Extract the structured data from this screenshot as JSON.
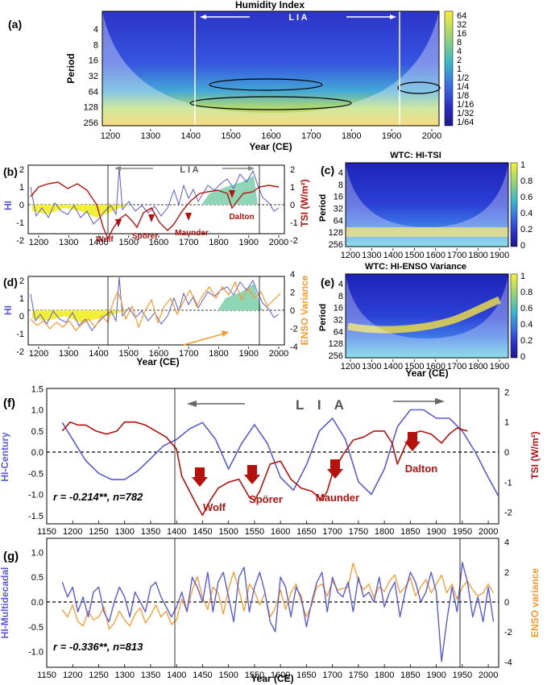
{
  "panel_a": {
    "tag": "(a)",
    "title": "Humidity Index",
    "ylabel": "Period",
    "xlabel": "Year (CE)",
    "lia_label": "L I A",
    "xticks": [
      "1200",
      "1300",
      "1400",
      "1500",
      "1600",
      "1700",
      "1800",
      "1900",
      "2000"
    ],
    "yticks": [
      "4",
      "8",
      "16",
      "32",
      "64",
      "128",
      "256"
    ],
    "colorbar": [
      "64",
      "32",
      "16",
      "8",
      "4",
      "2",
      "1",
      "1/2",
      "1/4",
      "1/8",
      "1/16",
      "1/32",
      "1/64"
    ]
  },
  "panel_b": {
    "tag": "(b)",
    "ylabel_left": "HI",
    "ylabel_right": "TSI (W/m²)",
    "lia_label": "L I A",
    "minima": [
      "Wolf",
      "Spörer",
      "Maunder",
      "Dalton"
    ],
    "xticks": [
      "1200",
      "1300",
      "1400",
      "1500",
      "1600",
      "1700",
      "1800",
      "1900",
      "2000"
    ],
    "yticks_left": [
      "2",
      "1",
      "0",
      "-1",
      "-2"
    ],
    "yticks_right": [
      "2",
      "1",
      "0",
      "-1",
      "-2"
    ]
  },
  "panel_c": {
    "tag": "(c)",
    "title": "WTC: HI-TSI",
    "ylabel": "Period",
    "yticks": [
      "4",
      "8",
      "16",
      "32",
      "64",
      "128",
      "256"
    ],
    "xticks": [
      "1200",
      "1300",
      "1400",
      "1500",
      "1600",
      "1700",
      "1800",
      "1900"
    ],
    "colorbar": [
      "1",
      "0.8",
      "0.6",
      "0.4",
      "0.2",
      "0"
    ]
  },
  "panel_d": {
    "tag": "(d)",
    "ylabel_left": "HI",
    "ylabel_right": "ENSO Variance",
    "xlabel": "Year (CE)",
    "xticks": [
      "1200",
      "1300",
      "1400",
      "1500",
      "1600",
      "1700",
      "1800",
      "1900",
      "2000"
    ],
    "yticks_left": [
      "2",
      "1",
      "0",
      "-1",
      "-2"
    ],
    "yticks_right": [
      "4",
      "2",
      "0",
      "-2",
      "-4"
    ]
  },
  "panel_e": {
    "tag": "(e)",
    "title": "WTC: HI-ENSO Variance",
    "ylabel": "Period",
    "xlabel": "Year (CE)",
    "yticks": [
      "4",
      "8",
      "16",
      "32",
      "64",
      "128",
      "256"
    ],
    "xticks": [
      "1200",
      "1300",
      "1400",
      "1500",
      "1600",
      "1700",
      "1800",
      "1900"
    ],
    "colorbar": [
      "1",
      "0.8",
      "0.6",
      "0.4",
      "0.2",
      "0"
    ]
  },
  "panel_f": {
    "tag": "(f)",
    "ylabel_left": "HI-Century",
    "ylabel_right": "TSI (W/m²)",
    "lia_label": "L I A",
    "minima": [
      "Wolf",
      "Spörer",
      "Maunder",
      "Dalton"
    ],
    "stat_r": "r = -0.214**, n=782",
    "xticks": [
      "1150",
      "1200",
      "1250",
      "1300",
      "1350",
      "1400",
      "1450",
      "1500",
      "1550",
      "1600",
      "1650",
      "1700",
      "1750",
      "1800",
      "1850",
      "1900",
      "1950",
      "2000"
    ],
    "yticks_left": [
      "1.5",
      "1.0",
      "0.5",
      "0.0",
      "-0.5",
      "-1.0",
      "-1.5"
    ],
    "yticks_right": [
      "2",
      "1",
      "0",
      "-1",
      "-2"
    ]
  },
  "panel_g": {
    "tag": "(g)",
    "ylabel_left": "HI-Multidecadal",
    "ylabel_right": "ENSO variance",
    "xlabel": "Year (CE)",
    "stat_r": "r = -0.336**, n=813",
    "xticks": [
      "1150",
      "1200",
      "1250",
      "1300",
      "1350",
      "1400",
      "1450",
      "1500",
      "1550",
      "1600",
      "1650",
      "1700",
      "1750",
      "1800",
      "1850",
      "1900",
      "1950",
      "2000"
    ],
    "yticks_left": [
      "1.0",
      "0.5",
      "0.0",
      "-0.5",
      "-1.0"
    ],
    "yticks_right": [
      "4",
      "2",
      "0",
      "-2",
      "-4"
    ]
  },
  "colors": {
    "hi": "#5b5bd6",
    "tsi": "#b5120e",
    "enso": "#f59a2e"
  },
  "chart_data": [
    {
      "type": "heatmap",
      "panel": "a",
      "title": "Humidity Index",
      "xlabel": "Year (CE)",
      "ylabel": "Period",
      "xlim": [
        1170,
        2020
      ],
      "y_scale": "log2",
      "ylim": [
        2,
        256
      ]
    },
    {
      "type": "line",
      "panel": "f",
      "xlim": [
        1150,
        2020
      ],
      "series": [
        {
          "name": "HI-Century",
          "axis": "left",
          "x": [
            1180,
            1200,
            1225,
            1250,
            1275,
            1300,
            1325,
            1350,
            1375,
            1400,
            1425,
            1450,
            1475,
            1500,
            1525,
            1550,
            1575,
            1600,
            1625,
            1650,
            1675,
            1700,
            1725,
            1750,
            1775,
            1800,
            1825,
            1850,
            1875,
            1900,
            1925,
            1950,
            1975,
            2000,
            2020
          ],
          "y": [
            0.7,
            0.3,
            -0.2,
            -0.5,
            -0.65,
            -0.65,
            -0.45,
            -0.15,
            0.15,
            0.3,
            0.55,
            0.7,
            0.3,
            -0.4,
            0.2,
            0.65,
            0.2,
            -0.6,
            -0.9,
            -0.3,
            0.5,
            0.8,
            0.3,
            -0.7,
            -1.0,
            -0.4,
            0.6,
            1.0,
            1.0,
            0.8,
            0.8,
            0.5,
            0.0,
            -0.6,
            -1.05
          ]
        },
        {
          "name": "TSI",
          "axis": "right",
          "x": [
            1180,
            1195,
            1210,
            1225,
            1245,
            1265,
            1285,
            1300,
            1320,
            1340,
            1360,
            1380,
            1400,
            1410,
            1425,
            1440,
            1450,
            1465,
            1480,
            1500,
            1520,
            1540,
            1550,
            1560,
            1580,
            1600,
            1620,
            1640,
            1660,
            1680,
            1690,
            1700,
            1720,
            1740,
            1760,
            1780,
            1800,
            1815,
            1825,
            1835,
            1850,
            1870,
            1890,
            1910,
            1925,
            1940,
            1960
          ],
          "y": [
            0.7,
            1.0,
            0.9,
            0.9,
            0.7,
            0.6,
            0.7,
            1.0,
            1.0,
            0.9,
            0.7,
            0.5,
            0.1,
            -0.8,
            -1.3,
            -1.8,
            -2.1,
            -1.6,
            -1.2,
            -1.0,
            -0.9,
            -1.5,
            -1.6,
            -1.3,
            -0.4,
            -0.3,
            -0.9,
            -1.2,
            -1.3,
            -1.6,
            -1.3,
            -0.7,
            -0.1,
            0.4,
            0.5,
            0.7,
            0.7,
            0.3,
            -0.4,
            0.0,
            0.6,
            0.7,
            0.6,
            0.3,
            0.6,
            0.8,
            0.7
          ]
        }
      ]
    },
    {
      "type": "line",
      "panel": "g",
      "xlim": [
        1150,
        2020
      ],
      "series": [
        {
          "name": "HI-Multidecadal",
          "axis": "left",
          "x": [
            1180,
            1190,
            1200,
            1210,
            1220,
            1230,
            1240,
            1250,
            1260,
            1270,
            1280,
            1290,
            1300,
            1310,
            1320,
            1330,
            1340,
            1350,
            1360,
            1370,
            1380,
            1390,
            1400,
            1410,
            1420,
            1430,
            1440,
            1450,
            1460,
            1470,
            1480,
            1490,
            1500,
            1510,
            1520,
            1530,
            1540,
            1550,
            1560,
            1570,
            1580,
            1590,
            1600,
            1610,
            1620,
            1630,
            1640,
            1650,
            1660,
            1670,
            1680,
            1690,
            1700,
            1710,
            1720,
            1730,
            1740,
            1750,
            1760,
            1770,
            1780,
            1790,
            1800,
            1810,
            1820,
            1830,
            1840,
            1850,
            1860,
            1870,
            1880,
            1890,
            1900,
            1910,
            1920,
            1930,
            1940,
            1950,
            1960,
            1970,
            1980,
            1990,
            2000,
            2010
          ],
          "y": [
            0.4,
            0.1,
            0.3,
            -0.2,
            0.1,
            -0.3,
            0.2,
            0.3,
            -0.2,
            -0.4,
            0.0,
            0.3,
            0.1,
            -0.3,
            0.2,
            0.0,
            -0.2,
            0.3,
            0.4,
            0.1,
            -0.1,
            -0.3,
            -0.1,
            0.2,
            -0.2,
            0.5,
            0.3,
            0.0,
            0.6,
            -0.2,
            0.4,
            0.6,
            0.1,
            -0.4,
            0.5,
            0.7,
            -0.2,
            0.3,
            0.6,
            0.2,
            -0.4,
            -0.6,
            0.5,
            0.3,
            -0.3,
            0.3,
            0.1,
            -0.5,
            0.0,
            0.4,
            0.6,
            -0.2,
            0.5,
            0.2,
            0.1,
            0.4,
            -0.2,
            0.5,
            0.1,
            0.2,
            0.0,
            0.5,
            -0.1,
            0.2,
            0.4,
            -0.3,
            0.2,
            0.6,
            0.4,
            0.0,
            0.2,
            0.6,
            0.2,
            -1.2,
            -0.4,
            0.3,
            -0.2,
            0.8,
            0.4,
            -0.3,
            0.1,
            -0.4,
            0.3,
            -0.4
          ]
        },
        {
          "name": "ENSO variance",
          "axis": "right",
          "x": [
            1180,
            1190,
            1200,
            1210,
            1220,
            1230,
            1240,
            1250,
            1260,
            1270,
            1280,
            1290,
            1300,
            1310,
            1320,
            1330,
            1340,
            1350,
            1360,
            1370,
            1380,
            1390,
            1400,
            1410,
            1420,
            1430,
            1440,
            1450,
            1460,
            1470,
            1480,
            1490,
            1500,
            1510,
            1520,
            1530,
            1540,
            1550,
            1560,
            1570,
            1580,
            1590,
            1600,
            1610,
            1620,
            1630,
            1640,
            1650,
            1660,
            1670,
            1680,
            1690,
            1700,
            1710,
            1720,
            1730,
            1740,
            1750,
            1760,
            1770,
            1780,
            1790,
            1800,
            1810,
            1820,
            1830,
            1840,
            1850,
            1860,
            1870,
            1880,
            1890,
            1900,
            1910,
            1920,
            1930,
            1940,
            1950,
            1960,
            1970,
            1980,
            1990,
            2000,
            2010
          ],
          "y": [
            -0.5,
            -1.0,
            -0.2,
            -1.3,
            -1.6,
            -0.6,
            -1.2,
            -1.0,
            -0.3,
            -1.8,
            -1.4,
            -0.6,
            -1.2,
            -1.6,
            -0.8,
            -0.4,
            -1.4,
            -0.9,
            -0.2,
            -1.0,
            -0.6,
            -1.5,
            -1.2,
            0.2,
            -0.6,
            0.8,
            1.7,
            0.3,
            -0.5,
            1.0,
            0.6,
            -0.8,
            0.9,
            2.0,
            0.8,
            -0.6,
            1.2,
            0.7,
            -0.2,
            0.6,
            -1.0,
            -0.4,
            0.8,
            -0.5,
            0.6,
            1.2,
            0.0,
            -1.0,
            -0.2,
            1.0,
            1.2,
            0.4,
            1.4,
            0.8,
            0.9,
            1.0,
            2.6,
            1.4,
            0.8,
            1.2,
            0.3,
            1.0,
            0.7,
            1.4,
            1.8,
            0.6,
            1.0,
            1.6,
            0.4,
            1.0,
            1.5,
            0.6,
            1.2,
            1.8,
            0.6,
            1.2,
            0.2,
            1.0,
            1.4,
            0.8,
            0.4,
            0.6,
            1.2,
            0.6
          ]
        }
      ]
    }
  ]
}
